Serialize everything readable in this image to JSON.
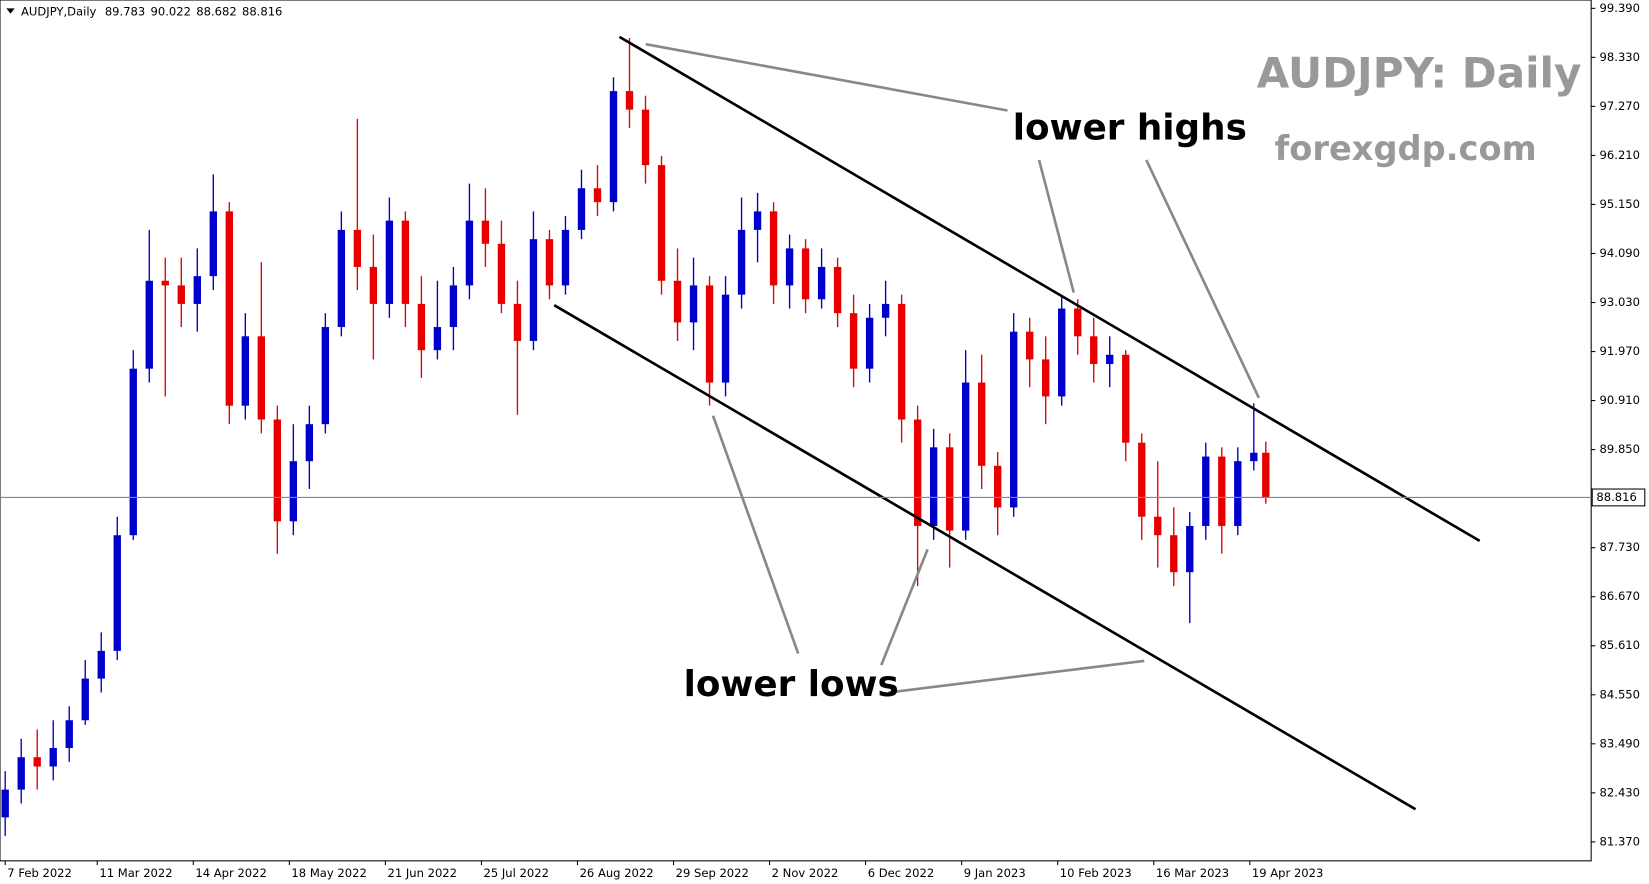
{
  "chart_data": {
    "type": "candlestick",
    "symbol_label": "AUDJPY,Daily",
    "watermark_title": "AUDJPY: Daily",
    "watermark_site": "forexgdp.com",
    "annotations": [
      "lower highs",
      "lower lows"
    ],
    "up_color": "#0000cd",
    "down_color": "#e60000",
    "x": [
      0,
      4,
      8,
      12,
      16,
      20,
      24,
      28,
      32,
      36,
      40,
      44,
      48,
      52,
      56,
      60,
      64,
      68,
      72,
      76,
      80,
      84,
      88,
      92,
      96,
      100,
      104,
      108,
      112,
      116,
      120,
      124,
      128,
      132,
      136,
      140,
      144,
      148,
      152,
      156,
      160,
      164,
      168,
      172,
      176,
      180,
      184,
      188,
      192,
      196,
      200,
      204,
      208,
      212,
      216,
      220,
      224,
      228,
      232,
      236,
      240,
      244,
      248,
      252,
      256,
      260,
      264,
      268,
      272,
      276,
      280,
      284,
      288,
      292,
      296,
      300,
      304,
      308,
      312,
      315
    ],
    "open": [
      81.9,
      82.5,
      83.2,
      83.0,
      83.4,
      84.0,
      84.9,
      85.5,
      88.0,
      91.6,
      93.5,
      93.4,
      93.0,
      93.6,
      95.0,
      90.8,
      92.3,
      90.5,
      88.3,
      89.6,
      90.4,
      92.5,
      94.6,
      93.8,
      93.0,
      94.8,
      93.0,
      92.0,
      92.5,
      93.4,
      94.8,
      94.3,
      93.0,
      92.2,
      94.4,
      93.4,
      94.6,
      95.5,
      95.2,
      97.6,
      97.2,
      96.0,
      93.5,
      92.6,
      93.4,
      91.3,
      93.2,
      94.6,
      95.0,
      93.4,
      94.2,
      93.1,
      93.8,
      92.8,
      91.6,
      92.7,
      93.0,
      90.5,
      88.2,
      89.9,
      88.1,
      91.3,
      89.5,
      88.6,
      92.4,
      91.8,
      91.0,
      92.9,
      92.3,
      91.7,
      91.9,
      90.0,
      88.4,
      88.0,
      87.2,
      88.2,
      89.7,
      88.2,
      89.6,
      89.783
    ],
    "high": [
      82.9,
      83.6,
      83.8,
      84.0,
      84.3,
      85.3,
      85.9,
      88.4,
      92.0,
      94.6,
      94.0,
      94.0,
      94.2,
      95.8,
      95.2,
      92.8,
      93.9,
      90.8,
      90.4,
      90.8,
      92.8,
      95.0,
      97.0,
      94.5,
      95.3,
      95.0,
      93.6,
      93.5,
      93.8,
      95.6,
      95.5,
      94.8,
      93.5,
      95.0,
      94.6,
      94.9,
      95.9,
      96.0,
      97.9,
      98.75,
      97.5,
      96.2,
      94.2,
      94.0,
      93.6,
      93.6,
      95.3,
      95.4,
      95.2,
      94.5,
      94.4,
      94.2,
      94.0,
      93.2,
      93.0,
      93.5,
      93.2,
      90.8,
      90.3,
      90.2,
      92.0,
      91.9,
      89.8,
      92.8,
      92.7,
      92.3,
      93.2,
      93.1,
      92.7,
      92.3,
      92.0,
      90.2,
      89.6,
      88.6,
      88.5,
      90.0,
      89.9,
      89.9,
      90.85,
      90.022
    ],
    "low": [
      81.5,
      82.2,
      82.5,
      82.7,
      83.1,
      83.9,
      84.6,
      85.3,
      87.9,
      91.3,
      91.0,
      92.5,
      92.4,
      93.3,
      90.4,
      90.5,
      90.2,
      87.6,
      88.0,
      89.0,
      90.2,
      92.3,
      93.3,
      91.8,
      92.7,
      92.5,
      91.4,
      91.8,
      92.0,
      93.1,
      93.8,
      92.8,
      90.6,
      92.0,
      93.1,
      93.2,
      94.4,
      94.9,
      95.0,
      96.8,
      95.6,
      93.2,
      92.2,
      92.0,
      90.8,
      91.0,
      92.9,
      93.9,
      93.0,
      92.9,
      92.8,
      92.9,
      92.5,
      91.2,
      91.3,
      92.3,
      90.0,
      86.9,
      87.9,
      87.3,
      87.9,
      89.0,
      88.0,
      88.4,
      91.2,
      90.4,
      90.8,
      91.9,
      91.3,
      91.2,
      89.6,
      87.9,
      87.3,
      86.9,
      86.1,
      87.9,
      87.6,
      88.0,
      89.4,
      88.682
    ],
    "close": [
      82.5,
      83.2,
      83.0,
      83.4,
      84.0,
      84.9,
      85.5,
      88.0,
      91.6,
      93.5,
      93.4,
      93.0,
      93.6,
      95.0,
      90.8,
      92.3,
      90.5,
      88.3,
      89.6,
      90.4,
      92.5,
      94.6,
      93.8,
      93.0,
      94.8,
      93.0,
      92.0,
      92.5,
      93.4,
      94.8,
      94.3,
      93.0,
      92.2,
      94.4,
      93.4,
      94.6,
      95.5,
      95.2,
      97.6,
      97.2,
      96.0,
      93.5,
      92.6,
      93.4,
      91.3,
      93.2,
      94.6,
      95.0,
      93.4,
      94.2,
      93.1,
      93.8,
      92.8,
      91.6,
      92.7,
      93.0,
      90.5,
      88.2,
      89.9,
      88.1,
      91.3,
      89.5,
      88.6,
      92.4,
      91.8,
      91.0,
      92.9,
      92.3,
      91.7,
      91.9,
      90.0,
      88.4,
      88.0,
      87.2,
      88.2,
      89.7,
      88.2,
      89.6,
      89.783,
      88.816
    ],
    "xlim": [
      -1.3,
      396.3
    ],
    "xticks": [
      {
        "value": 0,
        "label": "7 Feb 2022"
      },
      {
        "value": 23,
        "label": "11 Mar 2022"
      },
      {
        "value": 47,
        "label": "14 Apr 2022"
      },
      {
        "value": 71,
        "label": "18 May 2022"
      },
      {
        "value": 95,
        "label": "21 Jun 2022"
      },
      {
        "value": 119,
        "label": "25 Jul 2022"
      },
      {
        "value": 143,
        "label": "26 Aug 2022"
      },
      {
        "value": 167,
        "label": "29 Sep 2022"
      },
      {
        "value": 191,
        "label": "2 Nov 2022"
      },
      {
        "value": 215,
        "label": "6 Dec 2022"
      },
      {
        "value": 239,
        "label": "9 Jan 2023"
      },
      {
        "value": 263,
        "label": "10 Feb 2023"
      },
      {
        "value": 287,
        "label": "16 Mar 2023"
      },
      {
        "value": 311,
        "label": "19 Apr 2023"
      }
    ],
    "ylim": [
      80.96,
      99.57
    ],
    "yticks": [
      {
        "value": 99.39,
        "label": "99.390"
      },
      {
        "value": 98.33,
        "label": "98.330"
      },
      {
        "value": 97.27,
        "label": "97.270"
      },
      {
        "value": 96.21,
        "label": "96.210"
      },
      {
        "value": 95.15,
        "label": "95.150"
      },
      {
        "value": 94.09,
        "label": "94.090"
      },
      {
        "value": 93.03,
        "label": "93.030"
      },
      {
        "value": 91.97,
        "label": "91.970"
      },
      {
        "value": 90.91,
        "label": "90.910"
      },
      {
        "value": 89.85,
        "label": "89.850"
      },
      {
        "value": 87.73,
        "label": "87.730"
      },
      {
        "value": 86.67,
        "label": "86.670"
      },
      {
        "value": 85.61,
        "label": "85.610"
      },
      {
        "value": 84.55,
        "label": "84.550"
      },
      {
        "value": 83.49,
        "label": "83.490"
      },
      {
        "value": 82.43,
        "label": "82.430"
      },
      {
        "value": 81.37,
        "label": "81.370"
      }
    ]
  }
}
